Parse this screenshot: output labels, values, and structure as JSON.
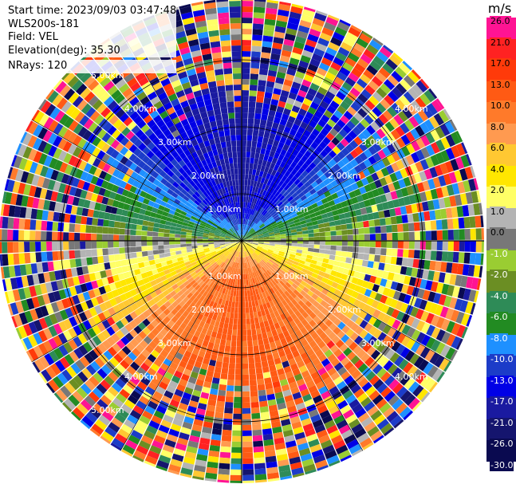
{
  "header": {
    "start_time": "Start time: 2023/09/03 03:47:48",
    "instrument": "WLS200s-181",
    "field": "Field: VEL",
    "elevation": "Elevation(deg): 35.30",
    "nrays": "NRays: 120"
  },
  "ring_labels": [
    "1.00km",
    "2.00km",
    "3.00km",
    "4.00km",
    "5.00km"
  ],
  "colorbar": {
    "unit": "m/s",
    "ticks": [
      "26.0",
      "21.0",
      "17.0",
      "13.0",
      "10.0",
      "8.0",
      "6.0",
      "4.0",
      "2.0",
      "1.0",
      "0.0",
      "-1.0",
      "-2.0",
      "-4.0",
      "-6.0",
      "-8.0",
      "-10.0",
      "-13.0",
      "-17.0",
      "-21.0",
      "-26.0",
      "-30.0"
    ],
    "colors": [
      "#ff1493",
      "#ff2222",
      "#ff3a0a",
      "#ff5a14",
      "#ff7a2a",
      "#ff9a50",
      "#ffc832",
      "#ffe600",
      "#ffff66",
      "#b4b4b4",
      "#787878",
      "#9acd32",
      "#6b8e23",
      "#2e8b57",
      "#228b22",
      "#1e90ff",
      "#1c3cc8",
      "#0000e6",
      "#1a1aa0",
      "#15156e",
      "#0a0a50"
    ],
    "label_colors": [
      "#000",
      "#000",
      "#000",
      "#000",
      "#000",
      "#000",
      "#000",
      "#000",
      "#000",
      "#000",
      "#000",
      "#fff",
      "#fff",
      "#fff",
      "#fff",
      "#fff",
      "#fff",
      "#fff",
      "#fff",
      "#fff",
      "#fff",
      "#fff"
    ]
  }
}
